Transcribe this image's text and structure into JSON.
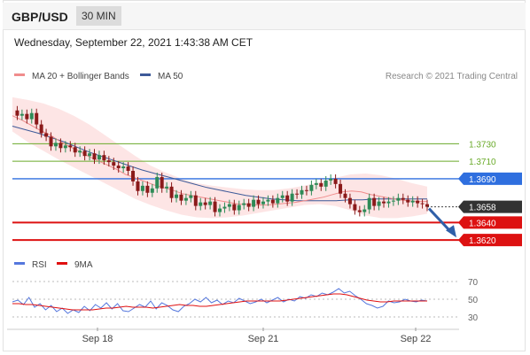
{
  "header": {
    "symbol": "GBP/USD",
    "timeframe": "30 MIN"
  },
  "datetime": "Wednesday, September 22, 2021 1:43:38 AM CET",
  "legend_main": [
    {
      "label": "MA 20 + Bollinger Bands",
      "color": "#f08c8c"
    },
    {
      "label": "MA 50",
      "color": "#3d5a99"
    }
  ],
  "research": "Research © 2021 Trading Central",
  "legend_rsi": [
    {
      "label": "RSI",
      "color": "#5577dd"
    },
    {
      "label": "9MA",
      "color": "#e01010"
    }
  ],
  "chart_data": {
    "type": "candlestick",
    "instrument": "GBP/USD",
    "interval": "30 MIN",
    "y_range": [
      1.3603,
      1.3793
    ],
    "x_ticks": [
      "Sep 18",
      "Sep 21",
      "Sep 22"
    ],
    "last_price": {
      "value": 1.3658,
      "label": "1.3658",
      "color": "#333333"
    },
    "levels": [
      {
        "value": 1.373,
        "label": "1.3730",
        "type": "resistance",
        "color": "#6aaa2a"
      },
      {
        "value": 1.371,
        "label": "1.3710",
        "type": "resistance",
        "color": "#6aaa2a"
      },
      {
        "value": 1.369,
        "label": "1.3690",
        "type": "pivot",
        "color": "#2f6fdf"
      },
      {
        "value": 1.364,
        "label": "1.3640",
        "type": "support",
        "color": "#dd1111"
      },
      {
        "value": 1.362,
        "label": "1.3620",
        "type": "support",
        "color": "#dd1111"
      }
    ],
    "close_path": [
      1.3768,
      1.3762,
      1.3764,
      1.3758,
      1.3765,
      1.3752,
      1.3742,
      1.3738,
      1.3727,
      1.3731,
      1.3725,
      1.3728,
      1.3726,
      1.372,
      1.3722,
      1.3716,
      1.3719,
      1.3712,
      1.3717,
      1.3711,
      1.3709,
      1.3705,
      1.3702,
      1.3704,
      1.3699,
      1.3687,
      1.3676,
      1.3682,
      1.3674,
      1.3679,
      1.3692,
      1.3679,
      1.3681,
      1.3668,
      1.3672,
      1.3665,
      1.3668,
      1.3671,
      1.3659,
      1.3663,
      1.366,
      1.3664,
      1.3652,
      1.3656,
      1.3658,
      1.3661,
      1.3654,
      1.366,
      1.3662,
      1.3658,
      1.3666,
      1.3661,
      1.3664,
      1.3666,
      1.3662,
      1.3668,
      1.3671,
      1.3664,
      1.3673,
      1.3672,
      1.3677,
      1.3676,
      1.3683,
      1.3685,
      1.3681,
      1.3688,
      1.369,
      1.3684,
      1.3673,
      1.3668,
      1.3661,
      1.3654,
      1.3652,
      1.3655,
      1.3668,
      1.3659,
      1.3664,
      1.3662,
      1.3664,
      1.3665,
      1.3668,
      1.3666,
      1.3663,
      1.3665,
      1.3662,
      1.3661,
      1.3658
    ],
    "ma20": [
      1.3762,
      1.3757,
      1.3751,
      1.3745,
      1.374,
      1.3733,
      1.3727,
      1.3722,
      1.3716,
      1.3711,
      1.3706,
      1.3701,
      1.3695,
      1.3691,
      1.3687,
      1.3683,
      1.368,
      1.3677,
      1.3673,
      1.3671,
      1.3669,
      1.3667,
      1.3665,
      1.3663,
      1.3661,
      1.3661,
      1.366,
      1.366,
      1.3661,
      1.3662,
      1.3663,
      1.3665,
      1.3667,
      1.3669,
      1.3672,
      1.3675,
      1.3676,
      1.3675,
      1.3672,
      1.367,
      1.3668,
      1.3666,
      1.3665,
      1.3664,
      1.3664
    ],
    "ma50": [
      1.375,
      1.3746,
      1.3742,
      1.3737,
      1.3732,
      1.3726,
      1.372,
      1.3715,
      1.371,
      1.3705,
      1.37,
      1.3696,
      1.3692,
      1.3688,
      1.3684,
      1.368,
      1.3677,
      1.3674,
      1.3671,
      1.3669,
      1.3667,
      1.3666,
      1.3665,
      1.3665,
      1.3665,
      1.3665,
      1.3666,
      1.3666,
      1.3667,
      1.3667,
      1.3667,
      1.3667,
      1.3667
    ],
    "bb_upper": [
      1.3783,
      1.378,
      1.3776,
      1.377,
      1.3762,
      1.3752,
      1.374,
      1.3728,
      1.3716,
      1.3705,
      1.3697,
      1.369,
      1.3685,
      1.3682,
      1.368,
      1.3678,
      1.3677,
      1.3677,
      1.3679,
      1.3682,
      1.3686,
      1.3691,
      1.3695,
      1.3696,
      1.3694,
      1.369,
      1.3685,
      1.3681
    ],
    "bb_lower": [
      1.3744,
      1.3732,
      1.3722,
      1.3712,
      1.3703,
      1.3694,
      1.3685,
      1.3676,
      1.3667,
      1.366,
      1.3654,
      1.3649,
      1.3646,
      1.3645,
      1.3646,
      1.3648,
      1.3651,
      1.3654,
      1.3657,
      1.366,
      1.3661,
      1.3659,
      1.3654,
      1.3648,
      1.3645,
      1.3645,
      1.3647,
      1.365
    ],
    "forecast": {
      "from": 1.3658,
      "to": 1.3625
    },
    "rsi": {
      "ticks": [
        "70",
        "50",
        "30"
      ],
      "tick_values": [
        70,
        50,
        30
      ],
      "range": [
        22,
        78
      ],
      "values": [
        47,
        49,
        44,
        52,
        41,
        45,
        38,
        43,
        36,
        40,
        34,
        38,
        35,
        42,
        37,
        44,
        40,
        46,
        39,
        45,
        37,
        36,
        40,
        44,
        41,
        48,
        39,
        46,
        43,
        38,
        36,
        42,
        45,
        50,
        47,
        52,
        46,
        49,
        44,
        48,
        46,
        51,
        48,
        45,
        47,
        50,
        46,
        49,
        52,
        47,
        50,
        48,
        53,
        51,
        55,
        53,
        57,
        55,
        58,
        62,
        57,
        59,
        54,
        50,
        45,
        43,
        40,
        42,
        48,
        46,
        47,
        50,
        48,
        47,
        49,
        48
      ],
      "ma9": [
        45,
        45,
        44,
        44,
        43,
        42,
        41,
        40,
        39,
        38,
        38,
        38,
        38,
        39,
        40,
        40,
        41,
        42,
        41,
        41,
        41,
        40,
        41,
        42,
        43,
        44,
        43,
        43,
        42,
        42,
        43,
        44,
        45,
        46,
        47,
        48,
        48,
        48,
        48,
        48,
        48,
        49,
        50,
        51,
        52,
        53,
        54,
        55,
        56,
        56,
        55,
        53,
        51,
        49,
        48,
        47,
        47,
        48,
        48,
        48,
        48,
        48,
        48
      ]
    }
  }
}
